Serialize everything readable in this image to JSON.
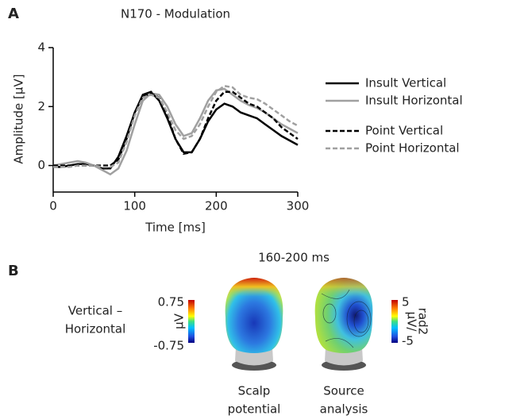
{
  "panel_a": {
    "label": "A"
  },
  "chart_data": {
    "type": "line",
    "title": "N170 - Modulation",
    "x_label": "Time [ms]",
    "y_label": "Amplitude [µV]",
    "x": [
      0,
      10,
      20,
      30,
      40,
      50,
      60,
      70,
      80,
      90,
      100,
      110,
      120,
      130,
      140,
      150,
      160,
      170,
      180,
      190,
      200,
      210,
      220,
      230,
      240,
      250,
      260,
      270,
      280,
      290,
      300
    ],
    "series": [
      {
        "name": "Insult Vertical",
        "color": "#000000",
        "dashed": false,
        "values": [
          -0.05,
          -0.05,
          0,
          0.05,
          0.05,
          0,
          -0.1,
          -0.1,
          0.3,
          1.0,
          1.8,
          2.4,
          2.5,
          2.2,
          1.6,
          0.9,
          0.45,
          0.45,
          0.9,
          1.5,
          1.9,
          2.1,
          2.0,
          1.8,
          1.7,
          1.6,
          1.4,
          1.2,
          1.0,
          0.85,
          0.7
        ]
      },
      {
        "name": "Insult Horizontal",
        "color": "#a0a0a0",
        "dashed": false,
        "values": [
          0,
          0.05,
          0.1,
          0.15,
          0.1,
          0,
          -0.15,
          -0.3,
          -0.1,
          0.5,
          1.4,
          2.2,
          2.45,
          2.4,
          2.0,
          1.4,
          1.0,
          1.1,
          1.6,
          2.2,
          2.55,
          2.6,
          2.4,
          2.2,
          2.05,
          1.95,
          1.8,
          1.6,
          1.4,
          1.25,
          1.1
        ]
      },
      {
        "name": "Point Vertical",
        "color": "#000000",
        "dashed": true,
        "values": [
          0,
          0,
          0,
          0,
          0,
          0,
          0,
          0,
          0.2,
          0.9,
          1.8,
          2.35,
          2.45,
          2.3,
          1.7,
          0.9,
          0.4,
          0.45,
          0.9,
          1.6,
          2.2,
          2.5,
          2.5,
          2.3,
          2.1,
          2.0,
          1.8,
          1.6,
          1.3,
          1.1,
          0.9
        ]
      },
      {
        "name": "Point Horizontal",
        "color": "#a0a0a0",
        "dashed": true,
        "values": [
          -0.05,
          -0.05,
          -0.05,
          0,
          0,
          0,
          -0.05,
          -0.05,
          0.1,
          0.8,
          1.7,
          2.3,
          2.4,
          2.3,
          1.8,
          1.2,
          0.9,
          1.0,
          1.4,
          2.0,
          2.5,
          2.7,
          2.65,
          2.4,
          2.3,
          2.25,
          2.1,
          1.9,
          1.7,
          1.5,
          1.35
        ]
      }
    ],
    "xlim": [
      0,
      300
    ],
    "xticks": [
      0,
      100,
      200,
      300
    ],
    "ylim": [
      -0.9,
      4
    ],
    "yticks": [
      0,
      2,
      4
    ],
    "legend": "right"
  },
  "panel_b": {
    "label": "B",
    "time_window": "160-200 ms",
    "condition": [
      "Vertical –",
      "Horizontal"
    ],
    "maps": [
      {
        "caption": [
          "Scalp",
          "potential"
        ],
        "scale_max": "0.75",
        "scale_min": "-0.75",
        "unit": [
          "µV"
        ]
      },
      {
        "caption": [
          "Source",
          "analysis"
        ],
        "scale_max": "5",
        "scale_min": "-5",
        "unit": [
          "µV/",
          "rad2"
        ]
      }
    ]
  }
}
